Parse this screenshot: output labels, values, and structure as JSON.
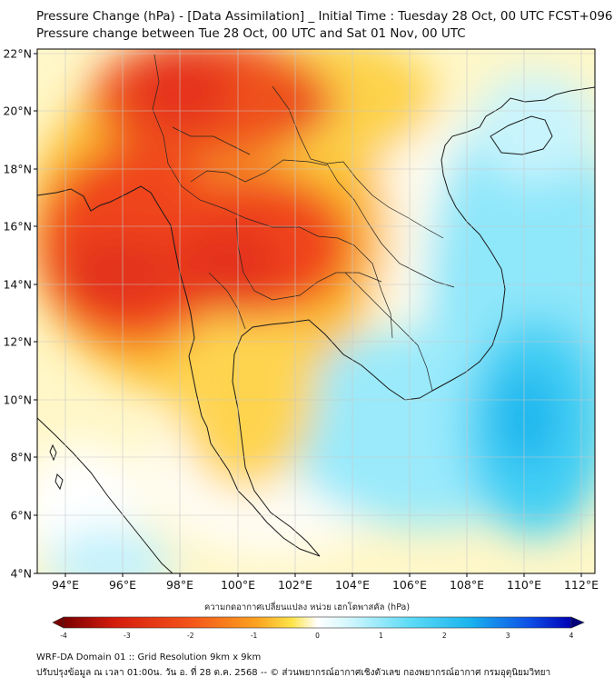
{
  "header": {
    "title_line1": "Pressure Change (hPa) - [Data Assimilation] _ Initial Time : Tuesday 28 Oct, 00 UTC FCST+096",
    "title_line2": "Pressure change between Tue 28 Oct, 00 UTC and Sat 01 Nov, 00 UTC"
  },
  "map": {
    "lat_ticks": [
      "22°N",
      "20°N",
      "18°N",
      "16°N",
      "14°N",
      "12°N",
      "10°N",
      "8°N",
      "6°N",
      "4°N"
    ],
    "lon_ticks": [
      "94°E",
      "96°E",
      "98°E",
      "100°E",
      "102°E",
      "104°E",
      "106°E",
      "108°E",
      "110°E",
      "112°E"
    ],
    "lat_values": [
      22,
      20,
      18,
      16,
      14,
      12,
      10,
      8,
      6,
      4
    ],
    "lon_values": [
      94,
      96,
      98,
      100,
      102,
      104,
      106,
      108,
      110,
      112
    ]
  },
  "colorbar": {
    "label": "ความกดอากาศเปลี่ยนแปลง หน่วย เฮกโตพาสคัล (hPa)",
    "tick_labels": [
      "-4",
      "-3",
      "-2",
      "-1",
      "0",
      "1",
      "2",
      "3",
      "4"
    ],
    "tick_values": [
      -4,
      -3,
      -2,
      -1,
      0,
      1,
      2,
      3,
      4
    ],
    "colors": [
      "#7a0000",
      "#d41b0c",
      "#f4541a",
      "#fba21f",
      "#fde44a",
      "#ffffc0",
      "#ffffff",
      "#d5f7fd",
      "#5fdcf7",
      "#1ab4ee",
      "#0d4de6",
      "#0000b4",
      "#00007a"
    ]
  },
  "footer": {
    "line1": "WRF-DA Domain 01 :: Grid Resolution 9km x 9km",
    "line2": "ปรับปรุงข้อมูล ณ เวลา 01:00น. วัน อ. ที่ 28 ต.ค. 2568 -- © ส่วนพยากรณ์อากาศเชิงตัวเลข กองพยากรณ์อากาศ กรมอุตุนิยมวิทยา"
  }
}
